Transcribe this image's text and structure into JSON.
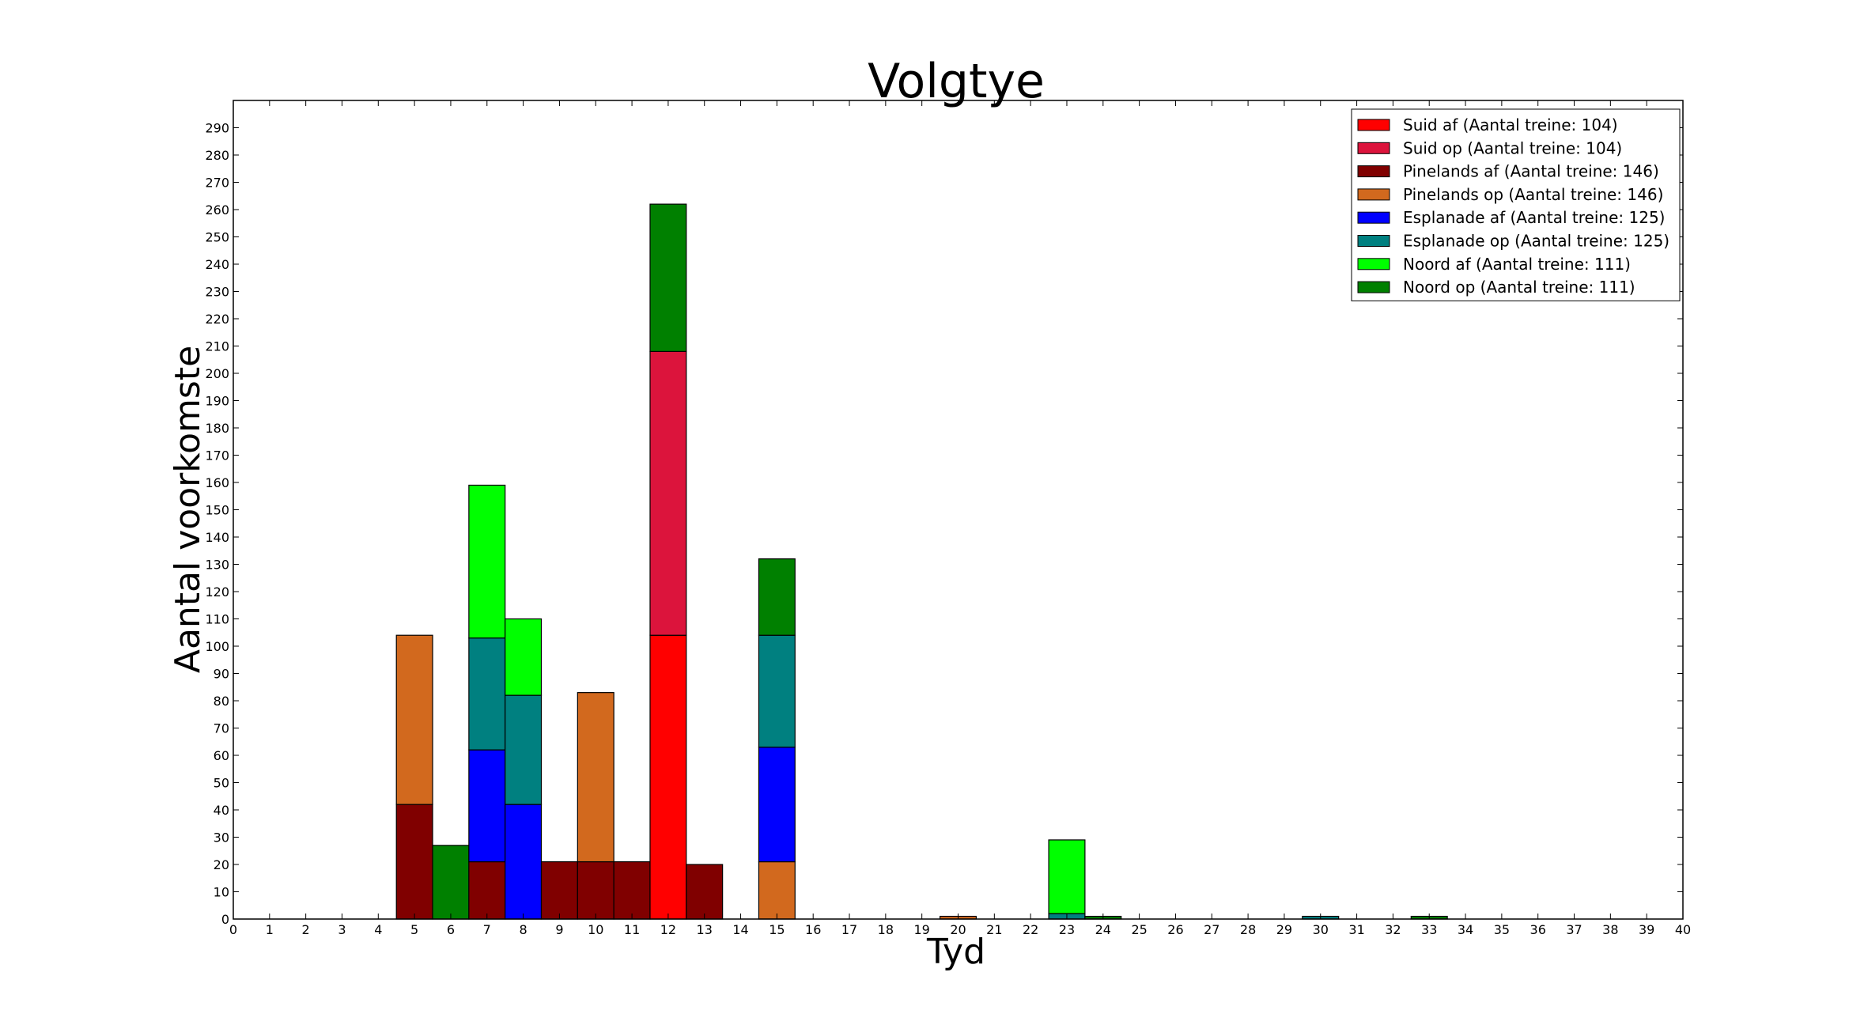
{
  "chart_data": {
    "type": "bar",
    "stacked": true,
    "title": "Volgtye",
    "xlabel": "Tyd",
    "ylabel": "Aantal voorkomste",
    "xlim": [
      0,
      40
    ],
    "ylim": [
      0,
      300
    ],
    "x_ticks": [
      0,
      1,
      2,
      3,
      4,
      5,
      6,
      7,
      8,
      9,
      10,
      11,
      12,
      13,
      14,
      15,
      16,
      17,
      18,
      19,
      20,
      21,
      22,
      23,
      24,
      25,
      26,
      27,
      28,
      29,
      30,
      31,
      32,
      33,
      34,
      35,
      36,
      37,
      38,
      39,
      40
    ],
    "y_ticks": [
      0,
      10,
      20,
      30,
      40,
      50,
      60,
      70,
      80,
      90,
      100,
      110,
      120,
      130,
      140,
      150,
      160,
      170,
      180,
      190,
      200,
      210,
      220,
      230,
      240,
      250,
      260,
      270,
      280,
      290
    ],
    "grid": false,
    "legend_position": "top-right",
    "bin_width": 1,
    "categories": [
      5,
      6,
      7,
      8,
      9,
      10,
      11,
      12,
      13,
      15,
      20,
      23,
      24,
      30,
      33
    ],
    "series": [
      {
        "name": "Suid af (Aantal treine: 104)",
        "color": "#ff0000",
        "values": [
          0,
          0,
          0,
          0,
          0,
          0,
          0,
          104,
          0,
          0,
          0,
          0,
          0,
          0,
          0
        ]
      },
      {
        "name": "Suid op (Aantal treine: 104)",
        "color": "#dc143c",
        "values": [
          0,
          0,
          0,
          0,
          0,
          0,
          0,
          104,
          0,
          0,
          0,
          0,
          0,
          0,
          0
        ]
      },
      {
        "name": "Pinelands af (Aantal treine: 146)",
        "color": "#800000",
        "values": [
          42,
          0,
          21,
          0,
          21,
          21,
          21,
          0,
          20,
          0,
          0,
          0,
          0,
          0,
          0
        ]
      },
      {
        "name": "Pinelands op (Aantal treine: 146)",
        "color": "#d2691e",
        "values": [
          62,
          0,
          0,
          0,
          0,
          62,
          0,
          0,
          0,
          21,
          1,
          0,
          0,
          0,
          0
        ]
      },
      {
        "name": "Esplanade af (Aantal treine: 125)",
        "color": "#0000ff",
        "values": [
          0,
          0,
          41,
          42,
          0,
          0,
          0,
          0,
          0,
          42,
          0,
          0,
          0,
          0,
          0
        ]
      },
      {
        "name": "Esplanade op (Aantal treine: 125)",
        "color": "#008080",
        "values": [
          0,
          0,
          41,
          40,
          0,
          0,
          0,
          0,
          0,
          41,
          0,
          2,
          0,
          1,
          0
        ]
      },
      {
        "name": "Noord af (Aantal treine: 111)",
        "color": "#00ff00",
        "values": [
          0,
          0,
          56,
          28,
          0,
          0,
          0,
          0,
          0,
          0,
          0,
          27,
          0,
          0,
          0
        ]
      },
      {
        "name": "Noord op (Aantal treine: 111)",
        "color": "#008000",
        "values": [
          0,
          27,
          0,
          0,
          0,
          0,
          0,
          54,
          0,
          28,
          0,
          0,
          1,
          0,
          1
        ]
      }
    ]
  }
}
